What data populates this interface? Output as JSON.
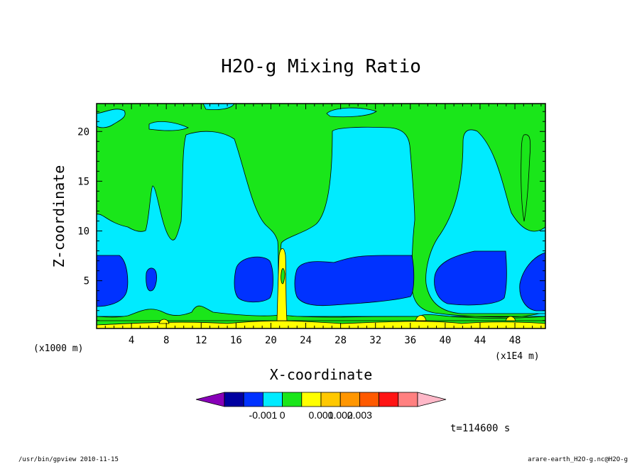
{
  "chart_data": {
    "type": "contour",
    "title": "H2O-g Mixing Ratio",
    "xlabel": "X-coordinate",
    "ylabel": "Z-coordinate",
    "x_unit_left": "(x1000 m)",
    "x_unit_right": "(x1E4 m)",
    "xlim": [
      0,
      51.5
    ],
    "ylim": [
      0.2,
      22.8
    ],
    "x_ticks": [
      4,
      8,
      12,
      16,
      20,
      24,
      28,
      32,
      36,
      40,
      44,
      48
    ],
    "y_ticks": [
      5,
      10,
      15,
      20
    ],
    "colors": {
      "deep_blue": "#0000c8",
      "blue": "#0032ff",
      "cyan": "#00ebff",
      "green": "#1ae61a",
      "yellow": "#ffff00",
      "background": "#ffffff"
    },
    "colorbar": {
      "colors": [
        "#8800b8",
        "#0000a0",
        "#0032ff",
        "#00ebff",
        "#1ae61a",
        "#ffff00",
        "#ffc800",
        "#ff9600",
        "#ff5a00",
        "#ff1414",
        "#ff8080",
        "#ffb8c8"
      ],
      "tick_labels": [
        "-0.001",
        "0",
        "0.001",
        "0.002",
        "0.003"
      ]
    },
    "time_label": "t=114600 s",
    "footer_left": "/usr/bin/gpview   2010-11-15",
    "footer_right": "arare-earth_H2O-g.nc@H2O-g"
  }
}
